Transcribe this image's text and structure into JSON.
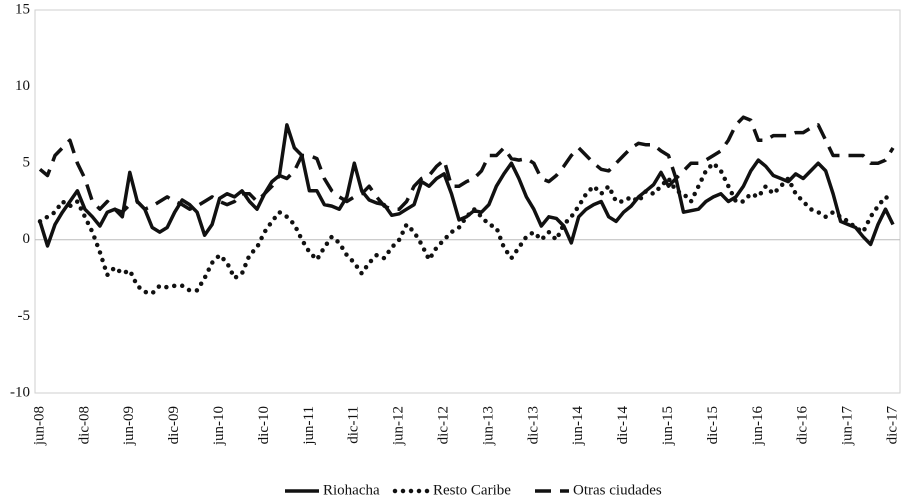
{
  "chart_data": {
    "type": "line",
    "categories": [
      "jun-08",
      null,
      null,
      null,
      null,
      null,
      "dic-08",
      null,
      null,
      null,
      null,
      null,
      "jun-09",
      null,
      null,
      null,
      null,
      null,
      "dic-09",
      null,
      null,
      null,
      null,
      null,
      "jun-10",
      null,
      null,
      null,
      null,
      null,
      "dic-10",
      null,
      null,
      null,
      null,
      null,
      "jun-11",
      null,
      null,
      null,
      null,
      null,
      "dic-11",
      null,
      null,
      null,
      null,
      null,
      "jun-12",
      null,
      null,
      null,
      null,
      null,
      "dic-12",
      null,
      null,
      null,
      null,
      null,
      "jun-13",
      null,
      null,
      null,
      null,
      null,
      "dic-13",
      null,
      null,
      null,
      null,
      null,
      "jun-14",
      null,
      null,
      null,
      null,
      null,
      "dic-14",
      null,
      null,
      null,
      null,
      null,
      "jun-15",
      null,
      null,
      null,
      null,
      null,
      "dic-15",
      null,
      null,
      null,
      null,
      null,
      "jun-16",
      null,
      null,
      null,
      null,
      null,
      "dic-16",
      null,
      null,
      null,
      null,
      null,
      "jun-17",
      null,
      null,
      null,
      null,
      null,
      "dic-17"
    ],
    "series": [
      {
        "name": "Riohacha",
        "color": "#111111",
        "style": "solid",
        "values": [
          1.2,
          -0.4,
          1.0,
          1.8,
          2.5,
          3.2,
          2.0,
          1.5,
          0.9,
          1.8,
          2.0,
          1.5,
          4.4,
          2.5,
          2.0,
          0.8,
          0.5,
          0.8,
          1.8,
          2.6,
          2.3,
          1.8,
          0.3,
          1.0,
          2.7,
          3.0,
          2.8,
          3.2,
          2.5,
          2.0,
          3.0,
          3.8,
          4.2,
          7.5,
          6.0,
          5.5,
          3.2,
          3.2,
          2.3,
          2.2,
          2.0,
          2.8,
          5.0,
          3.2,
          2.6,
          2.4,
          2.3,
          1.6,
          1.7,
          2.0,
          2.3,
          3.8,
          3.5,
          4.0,
          4.3,
          3.0,
          1.3,
          1.5,
          1.9,
          1.8,
          2.3,
          3.5,
          4.3,
          5.0,
          4.0,
          2.8,
          2.0,
          0.9,
          1.5,
          1.4,
          0.9,
          -0.2,
          1.5,
          2.0,
          2.3,
          2.5,
          1.5,
          1.2,
          1.8,
          2.2,
          2.8,
          3.2,
          3.6,
          4.4,
          3.5,
          4.0,
          1.8,
          1.9,
          2.0,
          2.5,
          2.8,
          3.0,
          2.5,
          2.8,
          3.5,
          4.5,
          5.2,
          4.8,
          4.2,
          4.0,
          3.8,
          4.3,
          4.0,
          4.5,
          5.0,
          4.5,
          3.0,
          1.2,
          1.0,
          0.8,
          0.2,
          -0.3,
          1.0,
          2.0,
          1.0
        ]
      },
      {
        "name": "Resto Caribe",
        "color": "#111111",
        "style": "dotted",
        "values": [
          1.2,
          1.5,
          1.8,
          2.5,
          2.2,
          2.5,
          1.5,
          0.5,
          -0.8,
          -2.3,
          -1.8,
          -2.2,
          -2.0,
          -3.0,
          -3.4,
          -3.5,
          -3.0,
          -3.1,
          -3.0,
          -3.0,
          -3.3,
          -3.3,
          -2.5,
          -1.5,
          -1.0,
          -1.5,
          -2.5,
          -2.2,
          -1.0,
          -0.5,
          0.5,
          1.2,
          1.8,
          1.5,
          1.0,
          0.0,
          -0.8,
          -1.3,
          -0.5,
          0.2,
          -0.2,
          -1.0,
          -1.5,
          -2.2,
          -1.5,
          -1.0,
          -1.2,
          -0.5,
          0.0,
          1.0,
          0.5,
          -0.3,
          -1.3,
          -0.5,
          0.0,
          0.5,
          0.8,
          1.5,
          2.0,
          1.5,
          1.0,
          0.8,
          -0.5,
          -1.2,
          -0.5,
          0.2,
          0.5,
          0.0,
          0.5,
          0.0,
          1.0,
          1.5,
          2.2,
          3.0,
          3.5,
          3.0,
          3.5,
          2.5,
          2.5,
          2.8,
          2.5,
          3.2,
          3.0,
          3.5,
          4.0,
          3.2,
          3.0,
          2.5,
          3.5,
          4.5,
          5.0,
          4.5,
          3.5,
          2.5,
          2.5,
          3.0,
          2.8,
          3.5,
          3.0,
          3.5,
          4.0,
          3.0,
          2.5,
          2.0,
          1.8,
          1.5,
          1.8,
          1.5,
          1.2,
          0.8,
          0.5,
          1.5,
          2.2,
          2.8,
          2.5
        ]
      },
      {
        "name": "Otras ciudades",
        "color": "#111111",
        "style": "dashed",
        "values": [
          4.6,
          4.2,
          5.5,
          6.0,
          6.5,
          5.0,
          4.0,
          2.5,
          2.0,
          2.5,
          2.0,
          1.8,
          2.3,
          2.5,
          2.0,
          2.2,
          2.5,
          2.8,
          2.5,
          2.3,
          2.0,
          2.2,
          2.5,
          2.8,
          2.5,
          2.3,
          2.5,
          3.0,
          3.0,
          2.5,
          3.0,
          3.5,
          4.2,
          4.0,
          4.5,
          5.5,
          5.5,
          5.3,
          4.0,
          3.2,
          2.8,
          2.5,
          2.8,
          3.0,
          3.5,
          2.8,
          2.2,
          2.0,
          2.0,
          2.5,
          3.5,
          4.0,
          4.2,
          4.8,
          5.2,
          3.5,
          3.5,
          3.8,
          4.0,
          4.5,
          5.5,
          5.5,
          6.0,
          5.3,
          5.2,
          5.3,
          5.0,
          4.0,
          3.8,
          4.2,
          4.8,
          5.5,
          6.0,
          5.5,
          5.0,
          4.6,
          4.5,
          5.0,
          5.5,
          6.0,
          6.3,
          6.2,
          6.2,
          5.8,
          5.5,
          4.0,
          4.5,
          5.0,
          5.0,
          5.2,
          5.5,
          5.8,
          6.5,
          7.5,
          8.0,
          7.8,
          6.5,
          6.5,
          6.8,
          6.8,
          6.8,
          7.0,
          7.0,
          7.3,
          7.5,
          6.5,
          5.5,
          5.5,
          5.5,
          5.5,
          5.5,
          5.0,
          5.0,
          5.2,
          6.0
        ]
      }
    ],
    "ylim": [
      -10,
      15
    ],
    "yticks": [
      -10,
      -5,
      0,
      5,
      10,
      15
    ],
    "legend": "bottom"
  }
}
